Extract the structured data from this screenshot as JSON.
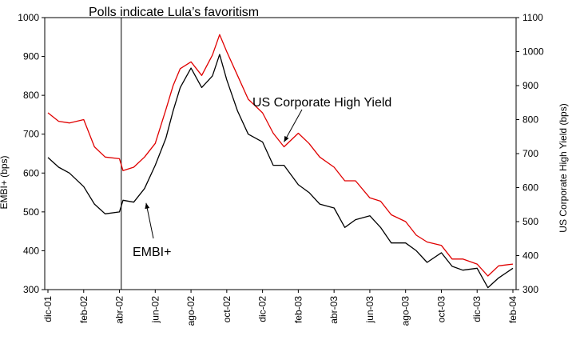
{
  "chart_data": {
    "type": "line",
    "x_tick_labels": [
      "dic-01",
      "feb-02",
      "abr-02",
      "jun-02",
      "ago-02",
      "oct-02",
      "dic-02",
      "feb-03",
      "abr-03",
      "jun-03",
      "ago-03",
      "oct-03",
      "dic-03",
      "feb-04"
    ],
    "ylabel_left": "EMBI+ (bps)",
    "ylabel_right": "US Corporate High Yield (bps)",
    "ylim_left": [
      300,
      1000
    ],
    "ylim_right": [
      300,
      1100
    ],
    "yticks_left": [
      300,
      400,
      500,
      600,
      700,
      800,
      900,
      1000
    ],
    "yticks_right": [
      300,
      400,
      500,
      600,
      700,
      800,
      900,
      1000,
      1100
    ],
    "grid": false,
    "series": [
      {
        "name": "EMBI+",
        "axis": "left",
        "color": "#000000",
        "x": [
          0,
          0.3,
          0.6,
          1,
          1.3,
          1.6,
          2,
          2.1,
          2.4,
          2.7,
          3,
          3.3,
          3.5,
          3.7,
          4,
          4.3,
          4.6,
          4.8,
          5,
          5.3,
          5.6,
          6,
          6.3,
          6.6,
          7,
          7.3,
          7.6,
          8,
          8.3,
          8.6,
          9,
          9.3,
          9.6,
          10,
          10.3,
          10.6,
          11,
          11.3,
          11.6,
          12,
          12.3,
          12.6,
          13
        ],
        "values": [
          640,
          615,
          600,
          565,
          520,
          495,
          500,
          530,
          525,
          560,
          620,
          690,
          760,
          820,
          870,
          820,
          850,
          905,
          840,
          760,
          700,
          680,
          620,
          620,
          570,
          550,
          520,
          510,
          460,
          480,
          490,
          460,
          420,
          420,
          400,
          370,
          395,
          360,
          350,
          355,
          305,
          330,
          355
        ]
      },
      {
        "name": "US Corporate High Yield",
        "axis": "right",
        "color": "#e00000",
        "x": [
          0,
          0.3,
          0.6,
          1,
          1.3,
          1.6,
          2,
          2.1,
          2.4,
          2.7,
          3,
          3.3,
          3.5,
          3.7,
          4,
          4.3,
          4.6,
          4.8,
          5,
          5.3,
          5.6,
          6,
          6.3,
          6.6,
          7,
          7.3,
          7.6,
          8,
          8.3,
          8.6,
          9,
          9.3,
          9.6,
          10,
          10.3,
          10.6,
          11,
          11.3,
          11.6,
          12,
          12.3,
          12.6,
          13
        ],
        "values": [
          820,
          795,
          790,
          800,
          720,
          690,
          685,
          650,
          660,
          690,
          730,
          830,
          900,
          950,
          970,
          930,
          990,
          1050,
          1000,
          930,
          860,
          820,
          760,
          720,
          760,
          730,
          690,
          660,
          620,
          620,
          570,
          560,
          520,
          500,
          460,
          440,
          430,
          390,
          390,
          375,
          340,
          370,
          375
        ]
      }
    ],
    "annotations": [
      {
        "text": "Polls indicate Lula’s favoritism",
        "x": 2.05
      },
      {
        "text": "US Corporate High Yield",
        "target_x": 6.6,
        "target_series": "US Corporate High Yield"
      },
      {
        "text": "EMBI+",
        "target_x": 2.7,
        "target_series": "EMBI+"
      }
    ]
  }
}
